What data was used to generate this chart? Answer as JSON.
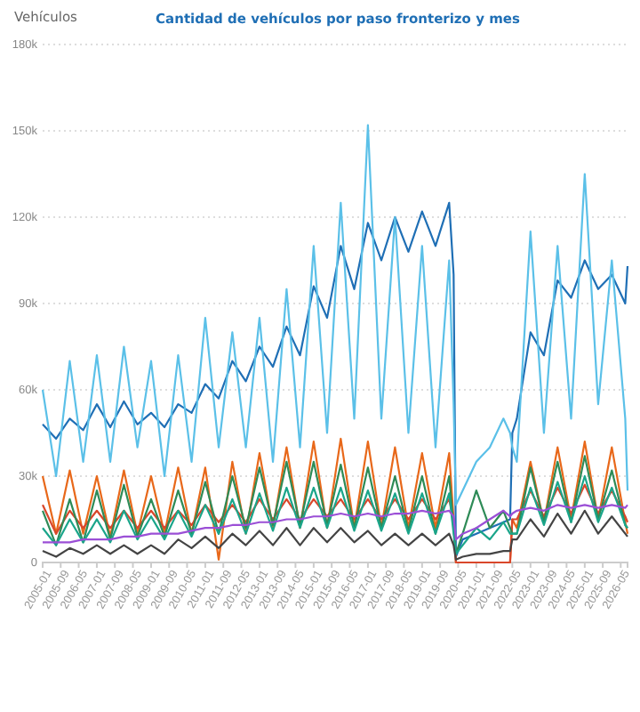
{
  "chart_data": {
    "type": "line",
    "title": "Cantidad de vehículos por paso fronterizo y mes",
    "ylabel": "Vehículos",
    "x": [
      "2005-01",
      "2005-07",
      "2006-01",
      "2006-07",
      "2007-01",
      "2007-07",
      "2008-01",
      "2008-07",
      "2009-01",
      "2009-07",
      "2010-01",
      "2010-07",
      "2011-01",
      "2011-07",
      "2012-01",
      "2012-07",
      "2013-01",
      "2013-07",
      "2014-01",
      "2014-07",
      "2015-01",
      "2015-07",
      "2016-01",
      "2016-07",
      "2017-01",
      "2017-07",
      "2018-01",
      "2018-07",
      "2019-01",
      "2019-07",
      "2020-01",
      "2020-03",
      "2020-04",
      "2020-07",
      "2021-01",
      "2021-07",
      "2022-01",
      "2022-04",
      "2022-05",
      "2022-07",
      "2023-01",
      "2023-07",
      "2024-01",
      "2024-07",
      "2025-01",
      "2025-07",
      "2026-01",
      "2026-07",
      "2026-08"
    ],
    "series": [
      {
        "color": "#1f6fb5",
        "values": [
          48000,
          43000,
          50000,
          46000,
          55000,
          47000,
          56000,
          48000,
          52000,
          47000,
          55000,
          52000,
          62000,
          57000,
          70000,
          63000,
          75000,
          68000,
          82000,
          72000,
          96000,
          85000,
          110000,
          95000,
          118000,
          105000,
          120000,
          108000,
          122000,
          110000,
          125000,
          100000,
          2000,
          8000,
          10000,
          12000,
          14000,
          15000,
          45000,
          50000,
          80000,
          72000,
          98000,
          92000,
          105000,
          95000,
          100000,
          90000,
          103000
        ]
      },
      {
        "color": "#5bc0e8",
        "values": [
          60000,
          30000,
          70000,
          35000,
          72000,
          35000,
          75000,
          40000,
          70000,
          30000,
          72000,
          35000,
          85000,
          40000,
          80000,
          40000,
          85000,
          35000,
          95000,
          40000,
          110000,
          45000,
          125000,
          50000,
          152000,
          50000,
          120000,
          45000,
          110000,
          40000,
          105000,
          55000,
          20000,
          25000,
          35000,
          40000,
          50000,
          45000,
          40000,
          35000,
          115000,
          45000,
          110000,
          50000,
          135000,
          55000,
          105000,
          50000,
          25000
        ]
      },
      {
        "color": "#e8681a",
        "values": [
          30000,
          10000,
          32000,
          10000,
          30000,
          9000,
          32000,
          10000,
          30000,
          10000,
          33000,
          10000,
          33000,
          1000,
          35000,
          10000,
          38000,
          12000,
          40000,
          12000,
          42000,
          12000,
          43000,
          12000,
          42000,
          12000,
          40000,
          12000,
          38000,
          12000,
          38000,
          15000,
          0,
          0,
          0,
          0,
          0,
          0,
          15000,
          12000,
          35000,
          14000,
          40000,
          15000,
          42000,
          15000,
          40000,
          14000,
          10000
        ]
      },
      {
        "color": "#d9472b",
        "values": [
          20000,
          10000,
          18000,
          12000,
          18000,
          12000,
          18000,
          12000,
          18000,
          12000,
          18000,
          13000,
          20000,
          14000,
          20000,
          14000,
          22000,
          15000,
          22000,
          15000,
          22000,
          16000,
          22000,
          15000,
          22000,
          15000,
          22000,
          15000,
          22000,
          15000,
          22000,
          15000,
          0,
          0,
          0,
          0,
          0,
          0,
          15000,
          15000,
          25000,
          16000,
          26000,
          17000,
          27000,
          17000,
          25000,
          16000,
          14000
        ]
      },
      {
        "color": "#2e8b57",
        "values": [
          18000,
          6000,
          22000,
          7000,
          25000,
          8000,
          27000,
          9000,
          22000,
          9000,
          25000,
          10000,
          28000,
          10000,
          30000,
          12000,
          33000,
          13000,
          35000,
          13000,
          35000,
          13000,
          34000,
          12000,
          33000,
          12000,
          30000,
          11000,
          30000,
          10000,
          30000,
          12000,
          3000,
          10000,
          25000,
          12000,
          18000,
          12000,
          10000,
          10000,
          33000,
          14000,
          35000,
          14000,
          37000,
          15000,
          32000,
          13000,
          12000
        ]
      },
      {
        "color": "#1aa58a",
        "values": [
          12000,
          6000,
          15000,
          7000,
          15000,
          7000,
          18000,
          8000,
          16000,
          8000,
          18000,
          9000,
          20000,
          10000,
          22000,
          10000,
          24000,
          11000,
          26000,
          12000,
          26000,
          12000,
          26000,
          11000,
          25000,
          11000,
          24000,
          10000,
          24000,
          10000,
          24000,
          10000,
          3000,
          6000,
          12000,
          8000,
          14000,
          10000,
          10000,
          10000,
          26000,
          13000,
          28000,
          14000,
          30000,
          14000,
          26000,
          13000,
          12000
        ]
      },
      {
        "color": "#9b4fd6",
        "values": [
          7000,
          7000,
          7000,
          8000,
          8000,
          8000,
          9000,
          9000,
          10000,
          10000,
          10000,
          11000,
          12000,
          12000,
          13000,
          13000,
          14000,
          14000,
          15000,
          15000,
          16000,
          16000,
          17000,
          16000,
          17000,
          16000,
          17000,
          17000,
          18000,
          17000,
          18000,
          16000,
          8000,
          10000,
          12000,
          15000,
          18000,
          16000,
          17000,
          18000,
          19000,
          18000,
          20000,
          19000,
          20000,
          19000,
          20000,
          19000,
          20000
        ]
      },
      {
        "color": "#444444",
        "values": [
          4000,
          2000,
          5000,
          3000,
          6000,
          3000,
          6000,
          3000,
          6000,
          3000,
          8000,
          5000,
          9000,
          5000,
          10000,
          6000,
          11000,
          6000,
          12000,
          6000,
          12000,
          7000,
          12000,
          7000,
          11000,
          6000,
          10000,
          6000,
          10000,
          6000,
          10000,
          6000,
          1000,
          2000,
          3000,
          3000,
          4000,
          4000,
          8000,
          8000,
          15000,
          9000,
          17000,
          10000,
          18000,
          10000,
          16000,
          10000,
          9000
        ]
      }
    ],
    "xlim": [
      "2005-01",
      "2026-08"
    ],
    "xticks": [
      "2005-01",
      "2005-09",
      "2006-05",
      "2007-01",
      "2007-09",
      "2008-05",
      "2009-01",
      "2009-09",
      "2010-05",
      "2011-01",
      "2011-09",
      "2012-05",
      "2013-01",
      "2013-09",
      "2014-05",
      "2015-01",
      "2015-09",
      "2016-05",
      "2017-01",
      "2017-09",
      "2018-05",
      "2019-01",
      "2019-09",
      "2020-05",
      "2021-01",
      "2021-09",
      "2022-05",
      "2023-01",
      "2023-09",
      "2024-05",
      "2025-01",
      "2025-09",
      "2026-05"
    ],
    "ylim": [
      0,
      180000
    ],
    "yticks": [
      0,
      {
        "value": 30000,
        "label": "30k"
      },
      {
        "value": 60000,
        "label": "60k"
      },
      {
        "value": 90000,
        "label": "90k"
      },
      {
        "value": 120000,
        "label": "120k"
      },
      {
        "value": 150000,
        "label": "150k"
      },
      {
        "value": 180000,
        "label": "180k"
      }
    ],
    "grid": "y",
    "line_style": "solid"
  }
}
